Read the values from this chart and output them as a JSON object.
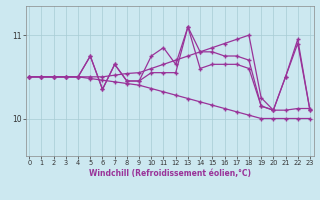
{
  "x": [
    0,
    1,
    2,
    3,
    4,
    5,
    6,
    7,
    8,
    9,
    10,
    11,
    12,
    13,
    14,
    15,
    16,
    17,
    18,
    19,
    20,
    21,
    22,
    23
  ],
  "series_spiky": [
    10.5,
    10.5,
    10.5,
    10.5,
    10.5,
    10.75,
    10.35,
    10.65,
    10.45,
    10.45,
    10.55,
    10.55,
    10.55,
    11.1,
    10.6,
    10.65,
    10.65,
    10.65,
    10.6,
    10.15,
    10.1,
    10.5,
    10.9,
    10.1
  ],
  "series_upper": [
    10.5,
    10.5,
    10.5,
    10.5,
    10.5,
    10.75,
    10.35,
    10.65,
    10.45,
    10.45,
    10.75,
    10.85,
    10.65,
    11.1,
    10.8,
    10.8,
    10.75,
    10.75,
    10.7,
    10.15,
    10.1,
    10.5,
    10.95,
    10.1
  ],
  "series_rise": [
    10.5,
    10.5,
    10.5,
    10.5,
    10.5,
    10.5,
    10.5,
    10.52,
    10.54,
    10.55,
    10.6,
    10.65,
    10.7,
    10.75,
    10.8,
    10.85,
    10.9,
    10.95,
    11.0,
    10.25,
    10.1,
    10.1,
    10.12,
    10.12
  ],
  "series_fall": [
    10.5,
    10.5,
    10.5,
    10.5,
    10.5,
    10.48,
    10.46,
    10.44,
    10.42,
    10.4,
    10.36,
    10.32,
    10.28,
    10.24,
    10.2,
    10.16,
    10.12,
    10.08,
    10.04,
    10.0,
    10.0,
    10.0,
    10.0,
    10.0
  ],
  "line_color": "#993399",
  "bg_color": "#cce8f0",
  "grid_color": "#a8ccd4",
  "xlabel": "Windchill (Refroidissement éolien,°C)",
  "yticks": [
    10,
    11
  ],
  "ytick_labels": [
    "10",
    "11"
  ],
  "xticks": [
    0,
    1,
    2,
    3,
    4,
    5,
    6,
    7,
    8,
    9,
    10,
    11,
    12,
    13,
    14,
    15,
    16,
    17,
    18,
    19,
    20,
    21,
    22,
    23
  ],
  "ylim": [
    9.55,
    11.35
  ],
  "xlim": [
    -0.3,
    23.3
  ]
}
